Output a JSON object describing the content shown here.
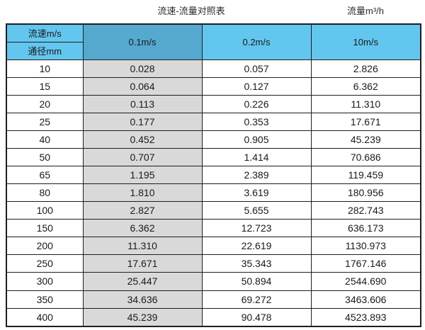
{
  "titles": {
    "main": "流速-流量对照表",
    "unit": "流量m³/h"
  },
  "colors": {
    "lightBlue": "#63c6ef",
    "darkBlue": "#55a9ce",
    "gray": "#d9d9d9",
    "border": "#1e1e1e",
    "cellWhite": "#ffffff",
    "text": "#1a1a1a"
  },
  "table": {
    "corner": {
      "top": "流速m/s",
      "bottom": "通径mm"
    },
    "velocity_columns": [
      "0.1m/s",
      "0.2m/s",
      "10m/s"
    ],
    "rows": [
      {
        "diameter": "10",
        "values": [
          "0.028",
          "0.057",
          "2.826"
        ]
      },
      {
        "diameter": "15",
        "values": [
          "0.064",
          "0.127",
          "6.362"
        ]
      },
      {
        "diameter": "20",
        "values": [
          "0.113",
          "0.226",
          "11.310"
        ]
      },
      {
        "diameter": "25",
        "values": [
          "0.177",
          "0.353",
          "17.671"
        ]
      },
      {
        "diameter": "40",
        "values": [
          "0.452",
          "0.905",
          "45.239"
        ]
      },
      {
        "diameter": "50",
        "values": [
          "0.707",
          "1.414",
          "70.686"
        ]
      },
      {
        "diameter": "65",
        "values": [
          "1.195",
          "2.389",
          "119.459"
        ]
      },
      {
        "diameter": "80",
        "values": [
          "1.810",
          "3.619",
          "180.956"
        ]
      },
      {
        "diameter": "100",
        "values": [
          "2.827",
          "5.655",
          "282.743"
        ]
      },
      {
        "diameter": "150",
        "values": [
          "6.362",
          "12.723",
          "636.173"
        ]
      },
      {
        "diameter": "200",
        "values": [
          "11.310",
          "22.619",
          "1130.973"
        ]
      },
      {
        "diameter": "250",
        "values": [
          "17.671",
          "35.343",
          "1767.146"
        ]
      },
      {
        "diameter": "300",
        "values": [
          "25.447",
          "50.894",
          "2544.690"
        ]
      },
      {
        "diameter": "350",
        "values": [
          "34.636",
          "69.272",
          "3463.606"
        ]
      },
      {
        "diameter": "400",
        "values": [
          "45.239",
          "90.478",
          "4523.893"
        ]
      }
    ]
  },
  "chart_data": {
    "type": "table",
    "title": "流速-流量对照表",
    "unit_label": "流量m³/h",
    "columns": [
      "通径mm",
      "0.1m/s",
      "0.2m/s",
      "10m/s"
    ],
    "rows": [
      [
        10,
        0.028,
        0.057,
        2.826
      ],
      [
        15,
        0.064,
        0.127,
        6.362
      ],
      [
        20,
        0.113,
        0.226,
        11.31
      ],
      [
        25,
        0.177,
        0.353,
        17.671
      ],
      [
        40,
        0.452,
        0.905,
        45.239
      ],
      [
        50,
        0.707,
        1.414,
        70.686
      ],
      [
        65,
        1.195,
        2.389,
        119.459
      ],
      [
        80,
        1.81,
        3.619,
        180.956
      ],
      [
        100,
        2.827,
        5.655,
        282.743
      ],
      [
        150,
        6.362,
        12.723,
        636.173
      ],
      [
        200,
        11.31,
        22.619,
        1130.973
      ],
      [
        250,
        17.671,
        35.343,
        1767.146
      ],
      [
        300,
        25.447,
        50.894,
        2544.69
      ],
      [
        350,
        34.636,
        69.272,
        3463.606
      ],
      [
        400,
        45.239,
        90.478,
        4523.893
      ]
    ]
  }
}
